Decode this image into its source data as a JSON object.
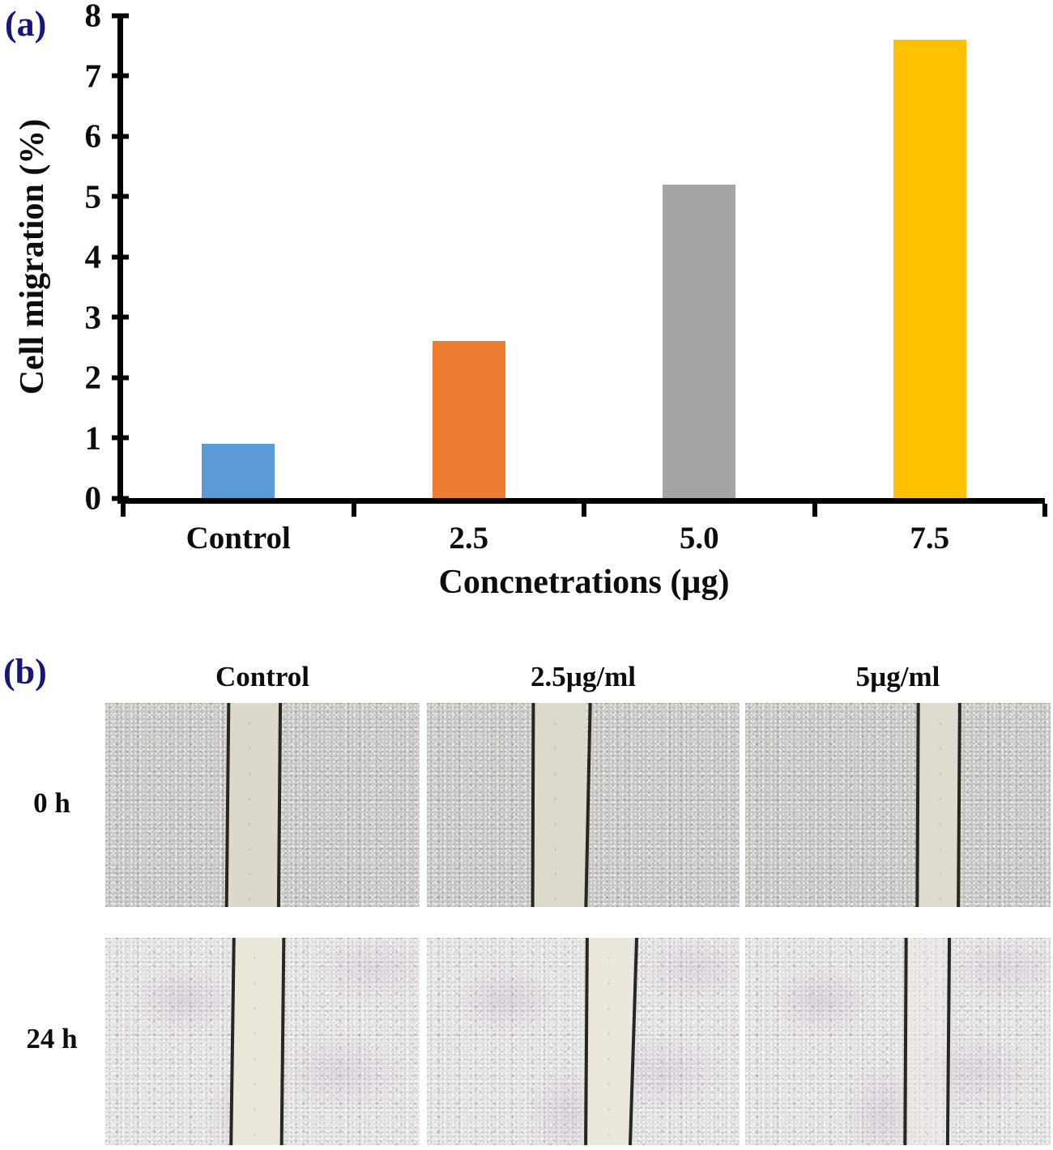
{
  "figure": {
    "panel_a_label": "(a)",
    "panel_b_label": "(b)",
    "panel_label_color": "#16167d"
  },
  "chart_data": {
    "type": "bar",
    "title": "",
    "categories": [
      "Control",
      "2.5",
      "5.0",
      "7.5"
    ],
    "values": [
      0.9,
      2.6,
      5.2,
      7.6
    ],
    "bar_colors": [
      "#5b9bd5",
      "#ed7d31",
      "#a5a5a5",
      "#ffc000"
    ],
    "xlabel": "Concnetrations (µg)",
    "ylabel": "Cell migration (%)",
    "ylim": [
      0,
      8
    ],
    "yticks": [
      0,
      1,
      2,
      3,
      4,
      5,
      6,
      7,
      8
    ],
    "grid": false,
    "legend": "none",
    "axis_color": "#000000"
  },
  "micrographs": {
    "column_headers": [
      "Control",
      "2.5µg/ml",
      "5µg/ml"
    ],
    "row_labels": [
      "0 h",
      "24 h"
    ],
    "cells": [
      {
        "id": "r1c1",
        "time": "0 h",
        "treatment": "Control",
        "gap_left_pct": 38.5,
        "gap_width_pct": 16.5,
        "tilt_left_deg": 0.6,
        "tilt_right_deg": 0.5,
        "gap_fill": "#dbd8cc",
        "filled": false
      },
      {
        "id": "r1c2",
        "time": "0 h",
        "treatment": "2.5µg/ml",
        "gap_left_pct": 33.5,
        "gap_width_pct": 17.5,
        "tilt_left_deg": 0.2,
        "tilt_right_deg": 1.2,
        "gap_fill": "#dcd9cd",
        "filled": false
      },
      {
        "id": "r1c3",
        "time": "0 h",
        "treatment": "5µg/ml",
        "gap_left_pct": 56.0,
        "gap_width_pct": 13.5,
        "tilt_left_deg": 0.3,
        "tilt_right_deg": 0.4,
        "gap_fill": "#dedbd1",
        "filled": false
      },
      {
        "id": "r2c1",
        "time": "24 h",
        "treatment": "Control",
        "gap_left_pct": 40.0,
        "gap_width_pct": 16.0,
        "tilt_left_deg": 0.8,
        "tilt_right_deg": 0.6,
        "gap_fill": "#e9e7da",
        "filled": false
      },
      {
        "id": "r2c2",
        "time": "24 h",
        "treatment": "2.5µg/ml",
        "gap_left_pct": 50.5,
        "gap_width_pct": 15.0,
        "tilt_left_deg": 0.4,
        "tilt_right_deg": 1.8,
        "gap_fill": "#eae8dc",
        "filled": false
      },
      {
        "id": "r2c3",
        "time": "24 h",
        "treatment": "5µg/ml",
        "gap_left_pct": 52.0,
        "gap_width_pct": 14.0,
        "tilt_left_deg": 0.3,
        "tilt_right_deg": 0.5,
        "gap_fill": "#edebe0",
        "filled": true
      }
    ]
  }
}
